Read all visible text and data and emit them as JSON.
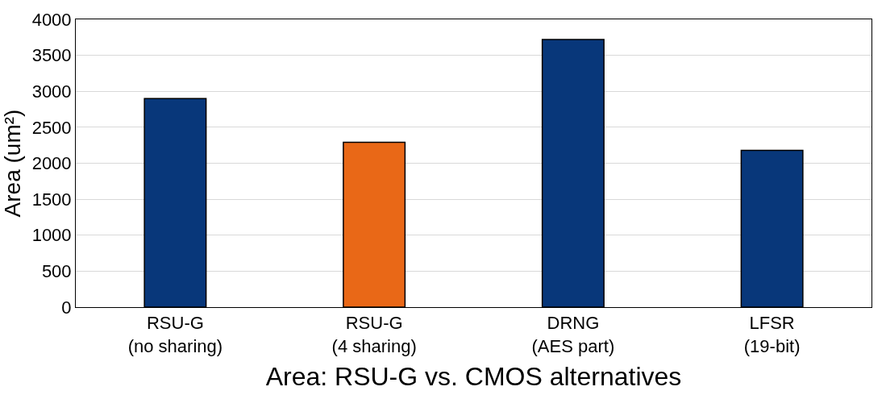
{
  "chart_data": {
    "type": "bar",
    "xlabel": "Area: RSU-G vs. CMOS alternatives",
    "ylabel": "Area (um²)",
    "categories": [
      "RSU-G\n(no sharing)",
      "RSU-G\n(4 sharing)",
      "DRNG\n(AES part)",
      "LFSR\n(19-bit)"
    ],
    "values": [
      2900,
      2290,
      3720,
      2180
    ],
    "colors": [
      "#08377a",
      "#e96817",
      "#08377a",
      "#08377a"
    ],
    "ylim": [
      0,
      4000
    ],
    "yticks": [
      0,
      500,
      1000,
      1500,
      2000,
      2500,
      3000,
      3500,
      4000
    ],
    "grid": "y",
    "legend": false
  }
}
